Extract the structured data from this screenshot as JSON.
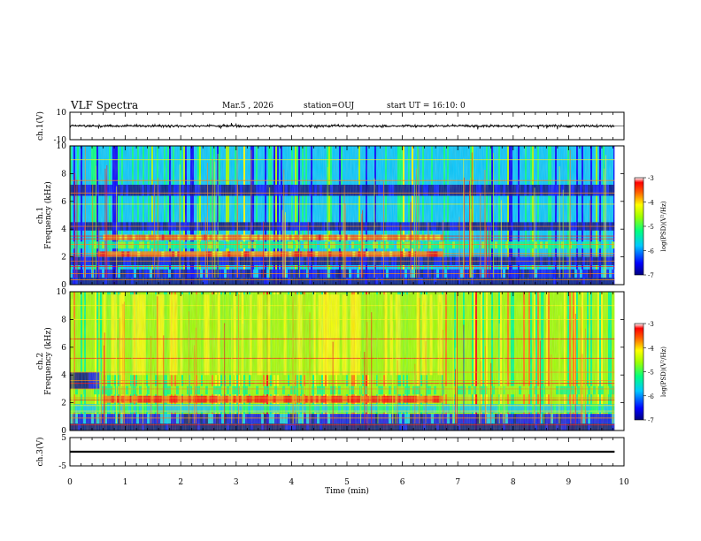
{
  "header": {
    "title": "VLF Spectra",
    "date": "Mar.5 , 2026",
    "station": "station=OUJ",
    "start": "start UT = 16:10: 0"
  },
  "chart_data": [
    {
      "type": "line",
      "panel": "ch1-waveform",
      "ylabel": "ch.1(V)",
      "ylim": [
        -10,
        10
      ],
      "y_ticks": [
        "10",
        "-10"
      ],
      "x_range_min": [
        0,
        9.83
      ],
      "baseline_v": 0,
      "amplitude_v": 1
    },
    {
      "type": "heatmap",
      "panel": "ch1-spectrogram",
      "ylabel": "ch.1 Frequency (kHz)",
      "ylim": [
        0,
        10
      ],
      "y_ticks": [
        "0",
        "2",
        "4",
        "6",
        "8",
        "10"
      ],
      "colorbar": {
        "label": "log(PSD)(V²/Hz)",
        "range": [
          -7,
          -3
        ],
        "ticks": [
          "-3",
          "-4",
          "-5",
          "-6",
          "-7"
        ]
      }
    },
    {
      "type": "heatmap",
      "panel": "ch2-spectrogram",
      "ylabel": "ch.2 Frequency (kHz)",
      "ylim": [
        0,
        10
      ],
      "y_ticks": [
        "0",
        "2",
        "4",
        "6",
        "8",
        "10"
      ],
      "colorbar": {
        "label": "log(PSD)(V²/Hz)",
        "range": [
          -7,
          -3
        ],
        "ticks": [
          "-3",
          "-4",
          "-5",
          "-6",
          "-7"
        ]
      }
    },
    {
      "type": "line",
      "panel": "ch3-waveform",
      "ylabel": "ch.3(V)",
      "ylim": [
        -5,
        5
      ],
      "y_ticks": [
        "5",
        "-5"
      ],
      "x_range_min": [
        0,
        9.83
      ],
      "baseline_v": 0
    }
  ],
  "x_axis": {
    "label": "Time (min)",
    "range": [
      0,
      10
    ],
    "ticks": [
      "0",
      "1",
      "2",
      "3",
      "4",
      "5",
      "6",
      "7",
      "8",
      "9",
      "10"
    ]
  },
  "colors": {
    "colormap": [
      "#000080",
      "#0000ff",
      "#00c8ff",
      "#00ff80",
      "#a0ff00",
      "#ffff00",
      "#ff8000",
      "#ff0000",
      "#ffffff"
    ],
    "frame": "#000000"
  }
}
